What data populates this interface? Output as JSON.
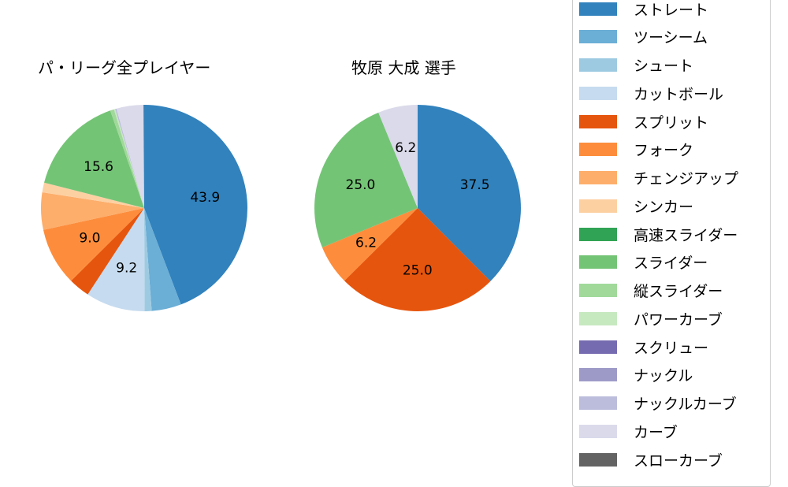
{
  "chart_data": [
    {
      "type": "pie",
      "title": "パ・リーグ全プレイヤー",
      "start_angle": 90,
      "direction": "clockwise",
      "slices": [
        {
          "label": "ストレート",
          "value": 43.9,
          "color": "#3182bd",
          "shown_label": "43.9"
        },
        {
          "label": "ツーシーム",
          "value": 4.6,
          "color": "#6baed6",
          "shown_label": ""
        },
        {
          "label": "シュート",
          "value": 1.1,
          "color": "#9ecae1",
          "shown_label": ""
        },
        {
          "label": "カットボール",
          "value": 9.2,
          "color": "#c6dbef",
          "shown_label": "9.2"
        },
        {
          "label": "スプリット",
          "value": 3.3,
          "color": "#e6550d",
          "shown_label": ""
        },
        {
          "label": "フォーク",
          "value": 9.0,
          "color": "#fd8d3c",
          "shown_label": "9.0"
        },
        {
          "label": "チェンジアップ",
          "value": 5.8,
          "color": "#fdae6b",
          "shown_label": ""
        },
        {
          "label": "シンカー",
          "value": 1.5,
          "color": "#fdd0a2",
          "shown_label": ""
        },
        {
          "label": "スライダー",
          "value": 15.6,
          "color": "#74c476",
          "shown_label": "15.6"
        },
        {
          "label": "縦スライダー",
          "value": 0.6,
          "color": "#a1d99b",
          "shown_label": ""
        },
        {
          "label": "パワーカーブ",
          "value": 0.2,
          "color": "#c7e9c0",
          "shown_label": ""
        },
        {
          "label": "ナックルカーブ",
          "value": 0.2,
          "color": "#bcbddc",
          "shown_label": ""
        },
        {
          "label": "カーブ",
          "value": 4.2,
          "color": "#dadaeb",
          "shown_label": ""
        },
        {
          "label": "スローカーブ",
          "value": 0.1,
          "color": "#636363",
          "shown_label": ""
        }
      ]
    },
    {
      "type": "pie",
      "title": "牧原 大成  選手",
      "start_angle": 90,
      "direction": "clockwise",
      "slices": [
        {
          "label": "ストレート",
          "value": 37.5,
          "color": "#3182bd",
          "shown_label": "37.5"
        },
        {
          "label": "スプリット",
          "value": 25.0,
          "color": "#e6550d",
          "shown_label": "25.0"
        },
        {
          "label": "フォーク",
          "value": 6.2,
          "color": "#fd8d3c",
          "shown_label": "6.2"
        },
        {
          "label": "スライダー",
          "value": 25.0,
          "color": "#74c476",
          "shown_label": "25.0"
        },
        {
          "label": "カーブ",
          "value": 6.2,
          "color": "#dadaeb",
          "shown_label": "6.2"
        }
      ]
    }
  ],
  "legend": {
    "position": "right",
    "items": [
      {
        "label": "ストレート",
        "color": "#3182bd"
      },
      {
        "label": "ツーシーム",
        "color": "#6baed6"
      },
      {
        "label": "シュート",
        "color": "#9ecae1"
      },
      {
        "label": "カットボール",
        "color": "#c6dbef"
      },
      {
        "label": "スプリット",
        "color": "#e6550d"
      },
      {
        "label": "フォーク",
        "color": "#fd8d3c"
      },
      {
        "label": "チェンジアップ",
        "color": "#fdae6b"
      },
      {
        "label": "シンカー",
        "color": "#fdd0a2"
      },
      {
        "label": "高速スライダー",
        "color": "#31a354"
      },
      {
        "label": "スライダー",
        "color": "#74c476"
      },
      {
        "label": "縦スライダー",
        "color": "#a1d99b"
      },
      {
        "label": "パワーカーブ",
        "color": "#c7e9c0"
      },
      {
        "label": "スクリュー",
        "color": "#756bb1"
      },
      {
        "label": "ナックル",
        "color": "#9e9ac8"
      },
      {
        "label": "ナックルカーブ",
        "color": "#bcbddc"
      },
      {
        "label": "カーブ",
        "color": "#dadaeb"
      },
      {
        "label": "スローカーブ",
        "color": "#636363"
      }
    ]
  }
}
